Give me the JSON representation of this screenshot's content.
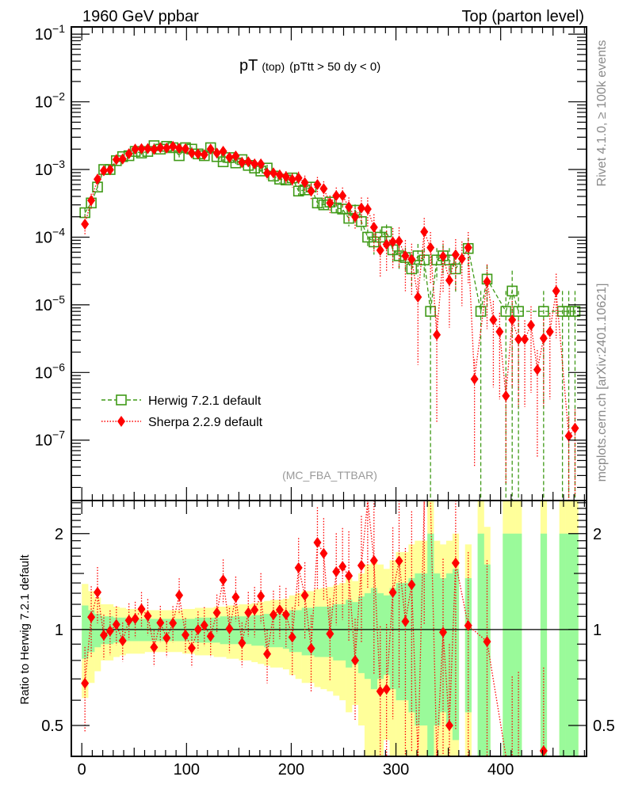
{
  "header": {
    "left": "1960 GeV ppbar",
    "right": "Top (parton level)"
  },
  "side_labels": {
    "rivet": "Rivet 4.1.0, ≥ 100k events",
    "mcplots": "mcplots.cern.ch [arXiv:2401.10621]"
  },
  "chart_data": {
    "type": "line",
    "title_main": "pT",
    "title_sub": "(top)",
    "title_cut": "(pTtt > 50 dy < 0)",
    "analysis": "(MC_FBA_TTBAR)",
    "xlabel": "",
    "ylabel": "",
    "xlim": [
      -10,
      482
    ],
    "ylim": [
      1.28e-08,
      0.128
    ],
    "yscale": "log",
    "grid": false,
    "legend_position": "lower-left",
    "bin_width": 6,
    "x": [
      3,
      9,
      15,
      21,
      27,
      33,
      39,
      45,
      51,
      57,
      63,
      69,
      75,
      81,
      87,
      93,
      99,
      105,
      111,
      117,
      123,
      129,
      135,
      141,
      147,
      153,
      159,
      165,
      171,
      177,
      183,
      189,
      195,
      201,
      207,
      213,
      219,
      225,
      231,
      237,
      243,
      249,
      255,
      261,
      267,
      273,
      279,
      285,
      291,
      297,
      303,
      309,
      315,
      321,
      327,
      333,
      339,
      345,
      351,
      357,
      363,
      369,
      375,
      381,
      387,
      393,
      399,
      405,
      411,
      417,
      423,
      429,
      435,
      441,
      447,
      453,
      459,
      465,
      471,
      477
    ],
    "series": [
      {
        "name": "Herwig 7.2.1 default",
        "color": "#3f9a17",
        "marker": "open-square",
        "line": "dashed",
        "values": [
          0.00023,
          0.00032,
          0.00055,
          0.001,
          0.001,
          0.00135,
          0.00155,
          0.0016,
          0.00185,
          0.00175,
          0.00185,
          0.00225,
          0.002,
          0.0022,
          0.0021,
          0.0016,
          0.0021,
          0.002,
          0.0017,
          0.0016,
          0.0021,
          0.00155,
          0.0013,
          0.0015,
          0.00125,
          0.0014,
          0.00115,
          0.00105,
          0.00095,
          0.00105,
          0.0008,
          0.00072,
          0.0007,
          0.00075,
          0.00048,
          0.0005,
          0.00055,
          0.00032,
          0.0003,
          0.00033,
          0.00027,
          0.00026,
          0.00019,
          0.00025,
          0.00017,
          0.0001,
          8.5e-05,
          0.0001,
          0.00012,
          6.5e-05,
          5.3e-05,
          5e-05,
          3.4e-05,
          5.3e-05,
          4.6e-05,
          8e-06,
          4.6e-05,
          5.3e-05,
          4.6e-05,
          3.4e-05,
          0,
          6.8e-05,
          0,
          8e-06,
          2.4e-05,
          0,
          0,
          8e-06,
          1.6e-05,
          8e-06,
          0,
          0,
          0,
          8e-06,
          0,
          0,
          8e-06,
          8e-06,
          8e-06,
          0
        ],
        "rel_err": [
          0.19,
          0.15,
          0.12,
          0.1,
          0.1,
          0.09,
          0.09,
          0.08,
          0.08,
          0.08,
          0.08,
          0.08,
          0.08,
          0.08,
          0.08,
          0.08,
          0.08,
          0.08,
          0.09,
          0.09,
          0.09,
          0.09,
          0.1,
          0.1,
          0.1,
          0.1,
          0.1,
          0.11,
          0.11,
          0.12,
          0.12,
          0.12,
          0.13,
          0.15,
          0.15,
          0.17,
          0.17,
          0.18,
          0.18,
          0.18,
          0.2,
          0.2,
          0.24,
          0.22,
          0.27,
          0.3,
          0.35,
          0.3,
          0.28,
          0.35,
          0.4,
          0.4,
          0.45,
          0.5,
          0.5,
          1,
          0.5,
          0.45,
          0.5,
          0.55,
          0,
          0.45,
          0,
          1,
          0.6,
          0,
          0,
          1,
          1,
          1,
          0,
          0,
          0,
          1,
          0,
          0,
          1,
          1,
          1,
          0
        ]
      },
      {
        "name": "Sherpa 2.2.9 default",
        "color": "#ff0000",
        "marker": "filled-diamond",
        "line": "dotted",
        "values": [
          0.000156,
          0.00035,
          0.00072,
          0.00096,
          0.00099,
          0.0014,
          0.00143,
          0.00171,
          0.002,
          0.00203,
          0.00204,
          0.00198,
          0.0021,
          0.00207,
          0.0022,
          0.00205,
          0.00202,
          0.00175,
          0.0017,
          0.00165,
          0.002,
          0.00175,
          0.00186,
          0.00151,
          0.00158,
          0.00127,
          0.0013,
          0.00121,
          0.00121,
          0.00088,
          0.00089,
          0.00083,
          0.00078,
          0.00071,
          0.00075,
          0.00064,
          0.00048,
          0.0006,
          0.00052,
          0.00032,
          0.00041,
          0.00041,
          0.00028,
          0.0002,
          0.00027,
          0.00026,
          0.00014,
          6.4e-05,
          7.8e-05,
          8.5e-05,
          8.7e-05,
          5.3e-05,
          4.7e-05,
          1.3e-05,
          0.00012,
          7e-05,
          3.6e-06,
          5.2e-05,
          2.3e-05,
          5.5e-05,
          4.8e-05,
          7e-05,
          8e-07,
          0,
          2.2e-05,
          6e-06,
          4e-06,
          4.5e-07,
          6e-06,
          3.1e-06,
          3.1e-06,
          5e-06,
          1.1e-06,
          3.2e-06,
          4e-06,
          1.6e-05,
          0,
          1.15e-07,
          1.5e-07,
          0
        ],
        "rel_err": [
          0.3,
          0.25,
          0.2,
          0.16,
          0.16,
          0.14,
          0.14,
          0.13,
          0.13,
          0.13,
          0.13,
          0.13,
          0.13,
          0.13,
          0.13,
          0.13,
          0.13,
          0.13,
          0.14,
          0.14,
          0.14,
          0.14,
          0.16,
          0.16,
          0.16,
          0.16,
          0.16,
          0.18,
          0.18,
          0.19,
          0.19,
          0.19,
          0.21,
          0.24,
          0.24,
          0.27,
          0.27,
          0.29,
          0.29,
          0.29,
          0.32,
          0.32,
          0.38,
          0.35,
          0.43,
          0.48,
          0.56,
          0.6,
          0.6,
          0.6,
          0.6,
          0.7,
          0.7,
          0.9,
          0.6,
          0.7,
          0.95,
          0.7,
          0.8,
          0.7,
          0.8,
          0.7,
          0.95,
          0,
          0.8,
          0.9,
          0.9,
          0.95,
          0.9,
          0.9,
          0.9,
          0.9,
          0.95,
          0.9,
          0.9,
          0.8,
          0,
          0.95,
          0.9,
          0
        ]
      }
    ],
    "yticks": [
      {
        "value": 0.1,
        "base": "10",
        "exp": "−1"
      },
      {
        "value": 0.01,
        "base": "10",
        "exp": "−2"
      },
      {
        "value": 0.001,
        "base": "10",
        "exp": "−3"
      },
      {
        "value": 0.0001,
        "base": "10",
        "exp": "−4"
      },
      {
        "value": 1e-05,
        "base": "10",
        "exp": "−5"
      },
      {
        "value": 1e-06,
        "base": "10",
        "exp": "−6"
      },
      {
        "value": 1e-07,
        "base": "10",
        "exp": "−7"
      }
    ],
    "xticks": [
      {
        "value": 0,
        "label": "0"
      },
      {
        "value": 100,
        "label": "100"
      },
      {
        "value": 200,
        "label": "200"
      },
      {
        "value": 300,
        "label": "300"
      },
      {
        "value": 400,
        "label": "400"
      }
    ],
    "ratio": {
      "ylabel": "Ratio to Herwig 7.2.1 default",
      "ylim": [
        0.4,
        2.54
      ],
      "yscale": "log",
      "yticks": [
        {
          "value": 2,
          "label": "2"
        },
        {
          "value": 1,
          "label": "1"
        },
        {
          "value": 0.5,
          "label": "0.5"
        }
      ],
      "band_colors": {
        "inner": "#9afa9a",
        "outer": "#ffff9a"
      },
      "band_inner_rel_err": [
        0.19,
        0.15,
        0.12,
        0.1,
        0.1,
        0.09,
        0.09,
        0.08,
        0.08,
        0.08,
        0.08,
        0.08,
        0.08,
        0.08,
        0.08,
        0.08,
        0.08,
        0.08,
        0.09,
        0.09,
        0.09,
        0.09,
        0.1,
        0.1,
        0.1,
        0.1,
        0.1,
        0.11,
        0.11,
        0.12,
        0.12,
        0.12,
        0.13,
        0.15,
        0.15,
        0.17,
        0.17,
        0.18,
        0.18,
        0.18,
        0.2,
        0.2,
        0.24,
        0.22,
        0.27,
        0.3,
        0.35,
        0.3,
        0.28,
        0.35,
        0.4,
        0.4,
        0.45,
        0.5,
        0.5,
        1,
        0.5,
        0.45,
        0.5,
        0.55,
        0,
        0.45,
        0,
        1,
        0.6,
        0,
        0,
        1,
        1,
        1,
        0,
        0,
        0,
        1,
        0,
        0,
        1,
        1,
        1,
        0
      ],
      "band_outer_rel_err": [
        0.39,
        0.32,
        0.26,
        0.2,
        0.2,
        0.18,
        0.17,
        0.16,
        0.16,
        0.16,
        0.15,
        0.15,
        0.15,
        0.15,
        0.15,
        0.15,
        0.16,
        0.16,
        0.17,
        0.17,
        0.17,
        0.18,
        0.18,
        0.19,
        0.19,
        0.2,
        0.2,
        0.21,
        0.22,
        0.23,
        0.24,
        0.24,
        0.25,
        0.28,
        0.3,
        0.32,
        0.32,
        0.34,
        0.35,
        0.36,
        0.38,
        0.4,
        0.45,
        0.42,
        0.5,
        0.6,
        0.65,
        0.6,
        0.55,
        0.65,
        0.75,
        0.75,
        0.85,
        0.9,
        0.9,
        2,
        0.9,
        0.85,
        0.9,
        1,
        0,
        0.85,
        0,
        2,
        1.1,
        0,
        0,
        2,
        2,
        2,
        0,
        0,
        0,
        2,
        0,
        0,
        2,
        2,
        2,
        0
      ]
    }
  }
}
